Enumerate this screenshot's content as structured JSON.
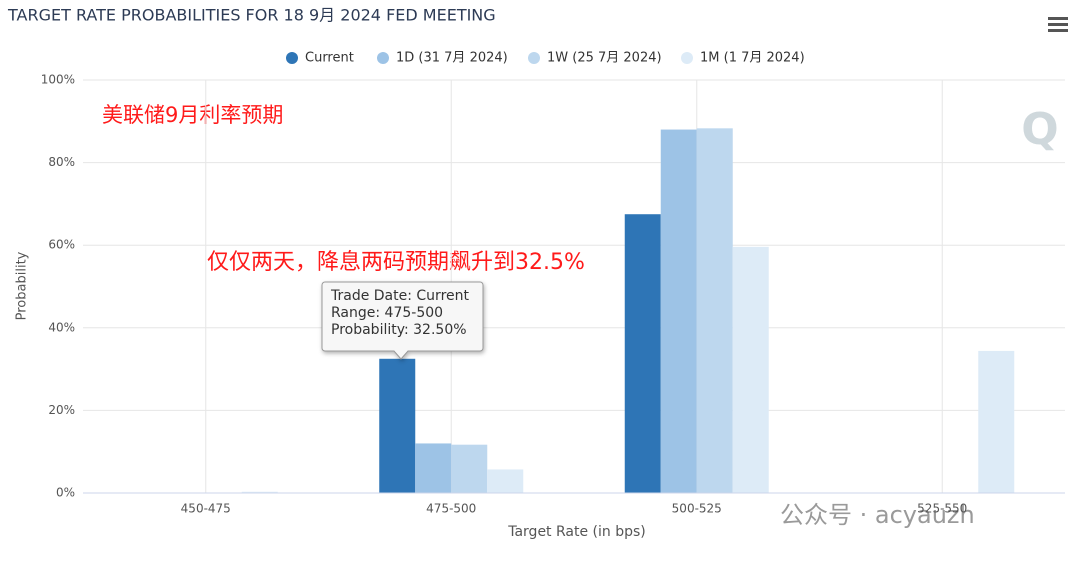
{
  "chart_data": {
    "type": "bar",
    "title": "TARGET RATE PROBABILITIES FOR 18 9月 2024 FED MEETING",
    "x_label": "Target Rate (in bps)",
    "y_label": "Probability",
    "categories": [
      "450-475",
      "475-500",
      "500-525",
      "525-550"
    ],
    "series": [
      {
        "name": "Current",
        "color": "#2e75b6",
        "values": [
          0,
          32.5,
          67.5,
          0
        ]
      },
      {
        "name": "1D (31 7月 2024)",
        "color": "#9dc3e6",
        "values": [
          0,
          12.0,
          88.0,
          0
        ]
      },
      {
        "name": "1W (25 7月 2024)",
        "color": "#bdd7ee",
        "values": [
          0,
          11.7,
          88.3,
          0
        ]
      },
      {
        "name": "1M (1 7月 2024)",
        "color": "#ddebf7",
        "values": [
          0.3,
          5.7,
          59.6,
          34.4
        ]
      }
    ],
    "ylim": [
      0,
      100
    ],
    "yticks": [
      {
        "value": 0,
        "label": "0%"
      },
      {
        "value": 20,
        "label": "20%"
      },
      {
        "value": 40,
        "label": "40%"
      },
      {
        "value": 60,
        "label": "60%"
      },
      {
        "value": 80,
        "label": "80%"
      },
      {
        "value": 100,
        "label": "100%"
      }
    ],
    "grid": true,
    "legend": "top",
    "annotations": [
      "美联储9月利率预期",
      "仅仅两天，降息两码预期飙升到32.5%"
    ],
    "tooltip": [
      "Trade Date: Current",
      "Range: 475-500",
      "Probability: 32.50%"
    ],
    "watermark": "公众号 · acyauzh"
  }
}
